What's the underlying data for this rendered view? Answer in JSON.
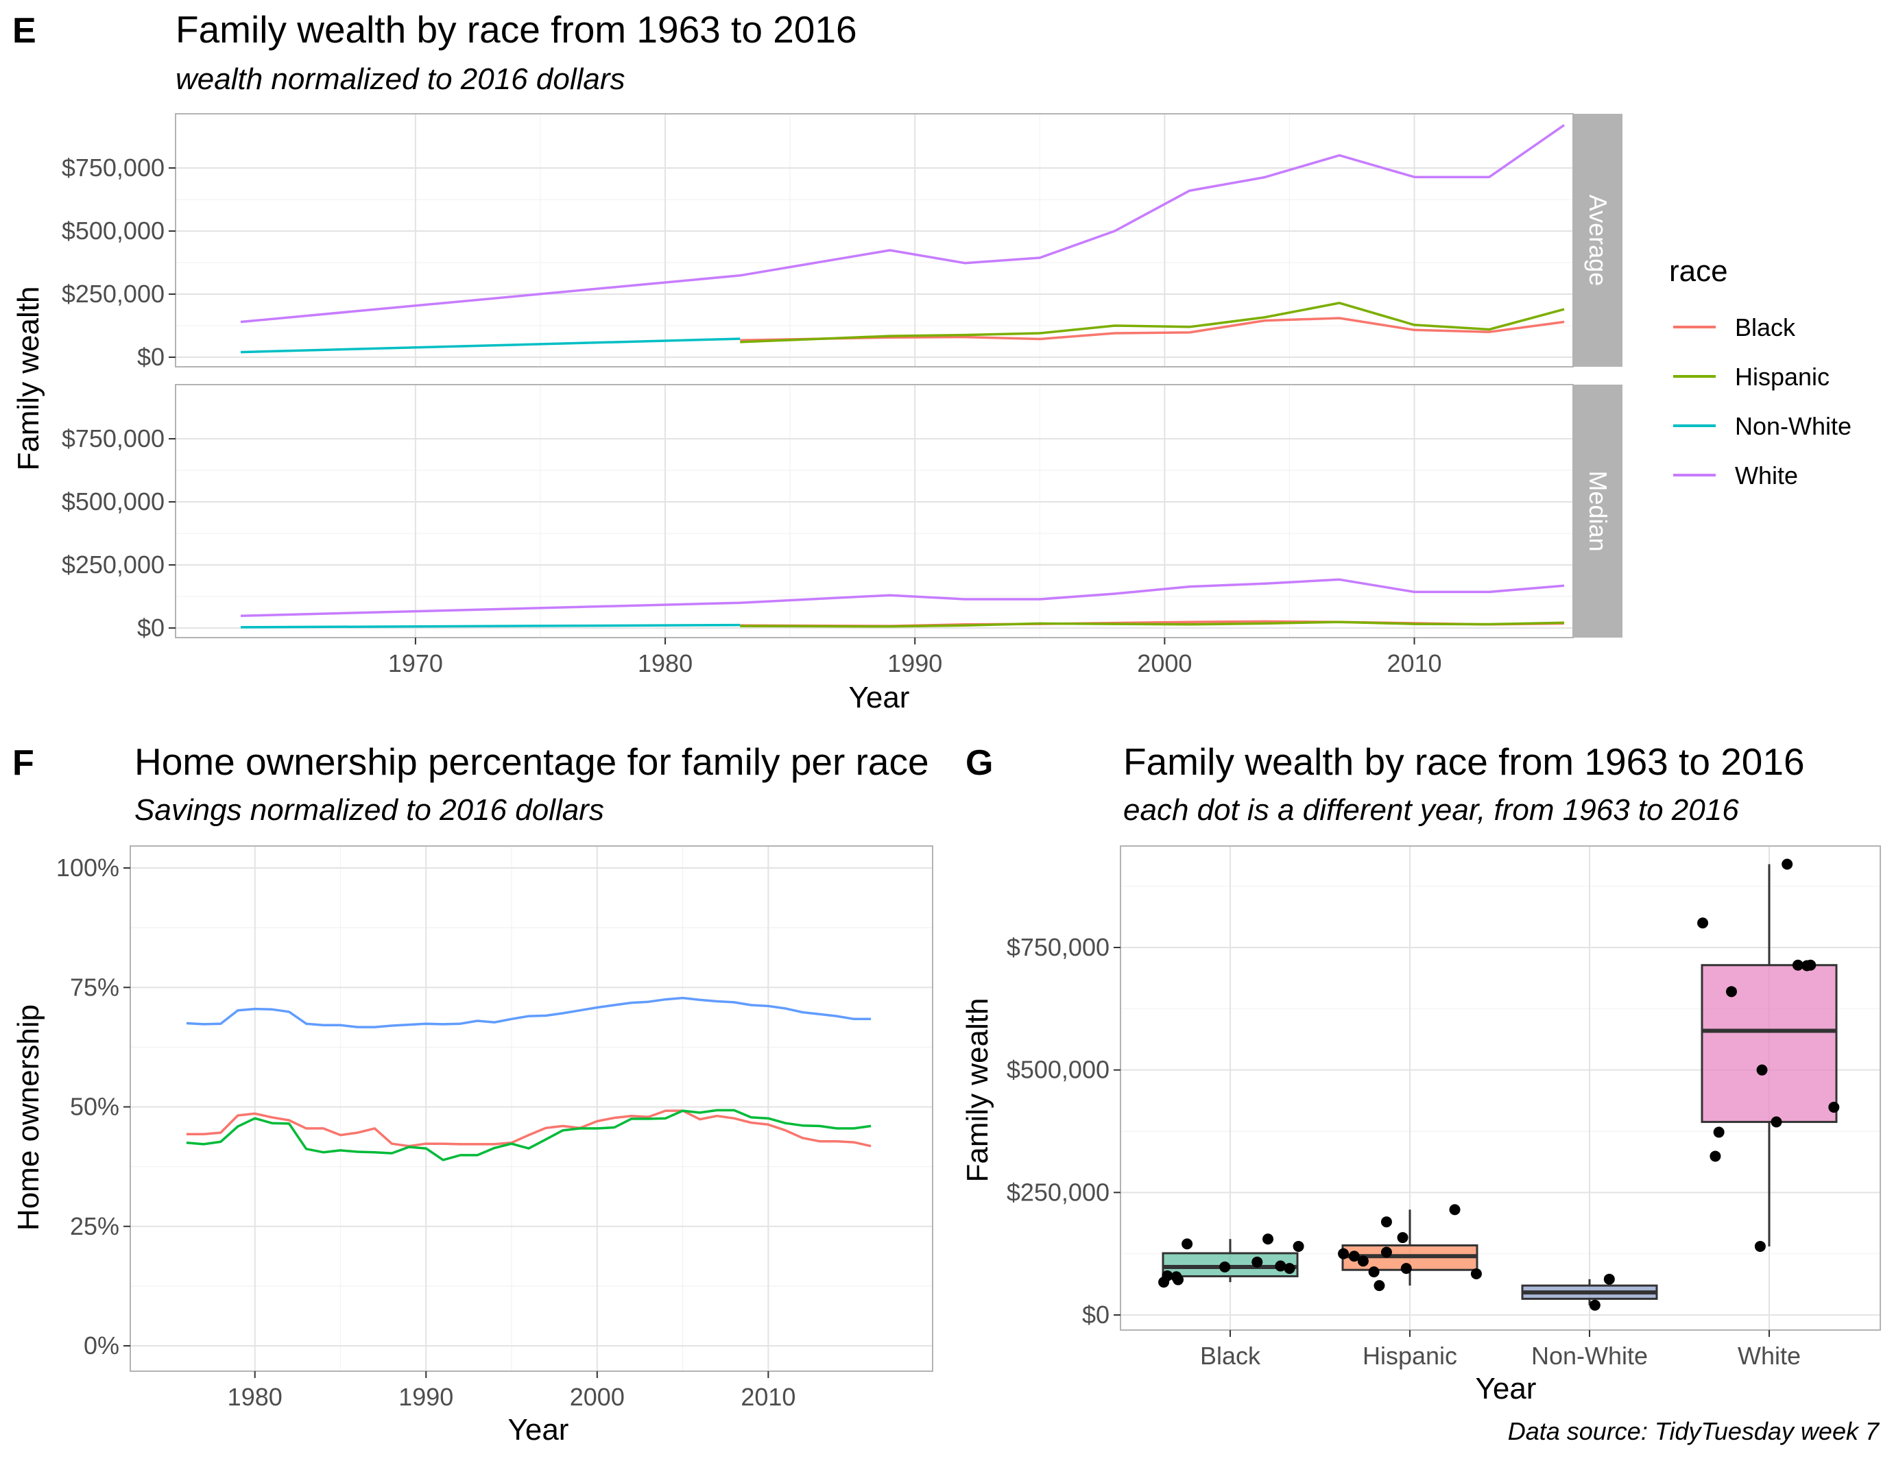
{
  "panels": {
    "E": {
      "letter": "E",
      "title": "Family wealth by race from 1963 to 2016",
      "subtitle": "wealth normalized to 2016 dollars",
      "xlabel": "Year",
      "ylabel": "Family wealth",
      "legend_title": "race"
    },
    "F": {
      "letter": "F",
      "title": "Home ownership percentage for family per race",
      "subtitle": "Savings normalized to 2016 dollars",
      "xlabel": "Year",
      "ylabel": "Home ownership"
    },
    "G": {
      "letter": "G",
      "title": "Family wealth by race from 1963 to 2016",
      "subtitle": "each dot is a different year, from 1963 to 2016",
      "xlabel": "Year",
      "ylabel": "Family wealth"
    }
  },
  "caption": "Data source: TidyTuesday week 7",
  "colors": {
    "Black": "#F8766D",
    "Hispanic": "#7CAE00",
    "Non-White": "#00BFC4",
    "White": "#C77CFF",
    "home_white": "#619CFF",
    "home_black": "#F8766D",
    "home_hispanic": "#00BA38",
    "box_Black": "#66C2A5",
    "box_Hispanic": "#FC8D62",
    "box_Non-White": "#8DA0CB",
    "box_White": "#E78AC3"
  },
  "chart_data": [
    {
      "id": "E",
      "type": "line",
      "facets": [
        "Average",
        "Median"
      ],
      "xlim": [
        1963,
        2016
      ],
      "x_ticks": [
        1970,
        1980,
        1990,
        2000,
        2010
      ],
      "x_tick_labels": [
        "1970",
        "1980",
        "1990",
        "2000",
        "2010"
      ],
      "ylim": [
        0,
        950000
      ],
      "y_ticks": [
        0,
        250000,
        500000,
        750000
      ],
      "y_tick_labels": [
        "$0",
        "$250,000",
        "$500,000",
        "$750,000"
      ],
      "legend": [
        "Black",
        "Hispanic",
        "Non-White",
        "White"
      ],
      "legend_position": "right",
      "grid": true,
      "series": [
        {
          "name": "Black",
          "facet": "Average",
          "x": [
            1983,
            1989,
            1992,
            1995,
            1998,
            2001,
            2004,
            2007,
            2010,
            2013,
            2016
          ],
          "y": [
            67000,
            78000,
            80000,
            72000,
            95000,
            98000,
            145000,
            155000,
            108000,
            100000,
            140000
          ]
        },
        {
          "name": "Hispanic",
          "facet": "Average",
          "x": [
            1983,
            1989,
            1992,
            1995,
            1998,
            2001,
            2004,
            2007,
            2010,
            2013,
            2016
          ],
          "y": [
            60000,
            84000,
            88000,
            95000,
            125000,
            120000,
            158000,
            215000,
            128000,
            110000,
            190000
          ]
        },
        {
          "name": "Non-White",
          "facet": "Average",
          "x": [
            1963,
            1983
          ],
          "y": [
            20000,
            73000
          ]
        },
        {
          "name": "White",
          "facet": "Average",
          "x": [
            1963,
            1983,
            1989,
            1992,
            1995,
            1998,
            2001,
            2004,
            2007,
            2010,
            2013,
            2016
          ],
          "y": [
            140000,
            324000,
            424000,
            373000,
            394000,
            500000,
            660000,
            713000,
            800000,
            714000,
            714000,
            920000
          ]
        },
        {
          "name": "Black",
          "facet": "Median",
          "x": [
            1983,
            1989,
            1992,
            1995,
            1998,
            2001,
            2004,
            2007,
            2010,
            2013,
            2016
          ],
          "y": [
            10000,
            8000,
            14000,
            16000,
            20000,
            24000,
            26000,
            24000,
            19000,
            14000,
            18000
          ]
        },
        {
          "name": "Hispanic",
          "facet": "Median",
          "x": [
            1983,
            1989,
            1992,
            1995,
            1998,
            2001,
            2004,
            2007,
            2010,
            2013,
            2016
          ],
          "y": [
            8000,
            6000,
            10000,
            18000,
            16000,
            14000,
            18000,
            24000,
            16000,
            15000,
            21000
          ]
        },
        {
          "name": "Non-White",
          "facet": "Median",
          "x": [
            1963,
            1983
          ],
          "y": [
            3000,
            12000
          ]
        },
        {
          "name": "White",
          "facet": "Median",
          "x": [
            1963,
            1983,
            1989,
            1992,
            1995,
            1998,
            2001,
            2004,
            2007,
            2010,
            2013,
            2016
          ],
          "y": [
            48000,
            100000,
            130000,
            114000,
            114000,
            136000,
            164000,
            176000,
            192000,
            143000,
            143000,
            168000
          ]
        }
      ]
    },
    {
      "id": "F",
      "type": "line",
      "xlim": [
        1974,
        2018
      ],
      "x_ticks": [
        1980,
        1990,
        2000,
        2010
      ],
      "x_tick_labels": [
        "1980",
        "1990",
        "2000",
        "2010"
      ],
      "ylim": [
        0,
        1
      ],
      "y_ticks": [
        0,
        0.25,
        0.5,
        0.75,
        1
      ],
      "y_tick_labels": [
        "0%",
        "25%",
        "50%",
        "75%",
        "100%"
      ],
      "grid": true,
      "series": [
        {
          "color_key": "home_white",
          "x": [
            1976,
            1977,
            1978,
            1979,
            1980,
            1981,
            1982,
            1983,
            1984,
            1985,
            1986,
            1987,
            1988,
            1989,
            1990,
            1991,
            1992,
            1993,
            1994,
            1995,
            1996,
            1997,
            1998,
            1999,
            2000,
            2001,
            2002,
            2003,
            2004,
            2005,
            2006,
            2007,
            2008,
            2009,
            2010,
            2011,
            2012,
            2013,
            2014,
            2015,
            2016
          ],
          "y": [
            0.675,
            0.673,
            0.674,
            0.702,
            0.705,
            0.704,
            0.699,
            0.674,
            0.671,
            0.671,
            0.667,
            0.667,
            0.67,
            0.672,
            0.674,
            0.673,
            0.674,
            0.68,
            0.677,
            0.684,
            0.69,
            0.691,
            0.696,
            0.702,
            0.708,
            0.713,
            0.718,
            0.72,
            0.725,
            0.728,
            0.724,
            0.721,
            0.719,
            0.713,
            0.711,
            0.706,
            0.698,
            0.694,
            0.69,
            0.684,
            0.684
          ]
        },
        {
          "color_key": "home_black",
          "x": [
            1976,
            1977,
            1978,
            1979,
            1980,
            1981,
            1982,
            1983,
            1984,
            1985,
            1986,
            1987,
            1988,
            1989,
            1990,
            1991,
            1992,
            1993,
            1994,
            1995,
            1996,
            1997,
            1998,
            1999,
            2000,
            2001,
            2002,
            2003,
            2004,
            2005,
            2006,
            2007,
            2008,
            2009,
            2010,
            2011,
            2012,
            2013,
            2014,
            2015,
            2016
          ],
          "y": [
            0.443,
            0.443,
            0.446,
            0.482,
            0.486,
            0.478,
            0.472,
            0.455,
            0.455,
            0.441,
            0.446,
            0.455,
            0.423,
            0.418,
            0.423,
            0.423,
            0.422,
            0.422,
            0.422,
            0.425,
            0.441,
            0.456,
            0.46,
            0.456,
            0.47,
            0.477,
            0.481,
            0.479,
            0.492,
            0.492,
            0.474,
            0.481,
            0.476,
            0.467,
            0.463,
            0.451,
            0.435,
            0.428,
            0.428,
            0.426,
            0.418
          ]
        },
        {
          "color_key": "home_hispanic",
          "x": [
            1976,
            1977,
            1978,
            1979,
            1980,
            1981,
            1982,
            1983,
            1984,
            1985,
            1986,
            1987,
            1988,
            1989,
            1990,
            1991,
            1992,
            1993,
            1994,
            1995,
            1996,
            1997,
            1998,
            1999,
            2000,
            2001,
            2002,
            2003,
            2004,
            2005,
            2006,
            2007,
            2008,
            2009,
            2010,
            2011,
            2012,
            2013,
            2014,
            2015,
            2016
          ],
          "y": [
            0.425,
            0.422,
            0.427,
            0.459,
            0.476,
            0.466,
            0.465,
            0.412,
            0.405,
            0.409,
            0.406,
            0.405,
            0.403,
            0.416,
            0.413,
            0.389,
            0.399,
            0.399,
            0.414,
            0.423,
            0.413,
            0.432,
            0.451,
            0.455,
            0.455,
            0.457,
            0.475,
            0.475,
            0.476,
            0.492,
            0.488,
            0.493,
            0.493,
            0.478,
            0.476,
            0.466,
            0.461,
            0.46,
            0.455,
            0.455,
            0.46
          ]
        }
      ]
    },
    {
      "id": "G",
      "type": "boxplot",
      "categories": [
        "Black",
        "Hispanic",
        "Non-White",
        "White"
      ],
      "ylim": [
        -25000,
        950000
      ],
      "y_ticks": [
        0,
        250000,
        500000,
        750000
      ],
      "y_tick_labels": [
        "$0",
        "$250,000",
        "$500,000",
        "$750,000"
      ],
      "grid": true,
      "boxes": [
        {
          "category": "Black",
          "min": 67000,
          "q1": 79000,
          "median": 98000,
          "q3": 126000,
          "max": 155000
        },
        {
          "category": "Hispanic",
          "min": 60000,
          "q1": 92000,
          "median": 120000,
          "q3": 142000,
          "max": 215000
        },
        {
          "category": "Non-White",
          "min": 20000,
          "q1": 33000,
          "median": 46000,
          "q3": 60000,
          "max": 73000
        },
        {
          "category": "White",
          "min": 140000,
          "q1": 394000,
          "median": 580000,
          "q3": 714000,
          "max": 920000
        }
      ],
      "points": [
        {
          "category": "Black",
          "values": [
            67000,
            78000,
            80000,
            72000,
            95000,
            98000,
            145000,
            155000,
            108000,
            100000,
            140000
          ],
          "jitter": [
            -0.37,
            -0.3,
            -0.35,
            -0.29,
            0.33,
            -0.03,
            -0.24,
            0.21,
            0.15,
            0.28,
            0.38
          ]
        },
        {
          "category": "Hispanic",
          "values": [
            60000,
            84000,
            88000,
            95000,
            125000,
            120000,
            158000,
            215000,
            128000,
            110000,
            190000
          ],
          "jitter": [
            -0.17,
            0.37,
            -0.2,
            -0.02,
            -0.37,
            -0.31,
            -0.04,
            0.25,
            -0.13,
            -0.26,
            -0.13
          ]
        },
        {
          "category": "Non-White",
          "values": [
            20000,
            73000
          ],
          "jitter": [
            0.03,
            0.11
          ]
        },
        {
          "category": "White",
          "values": [
            140000,
            324000,
            424000,
            373000,
            394000,
            500000,
            660000,
            713000,
            800000,
            714000,
            714000,
            920000
          ],
          "jitter": [
            -0.05,
            -0.3,
            0.36,
            -0.28,
            0.04,
            -0.04,
            -0.21,
            0.21,
            -0.37,
            0.16,
            0.23,
            0.1
          ]
        }
      ]
    }
  ]
}
